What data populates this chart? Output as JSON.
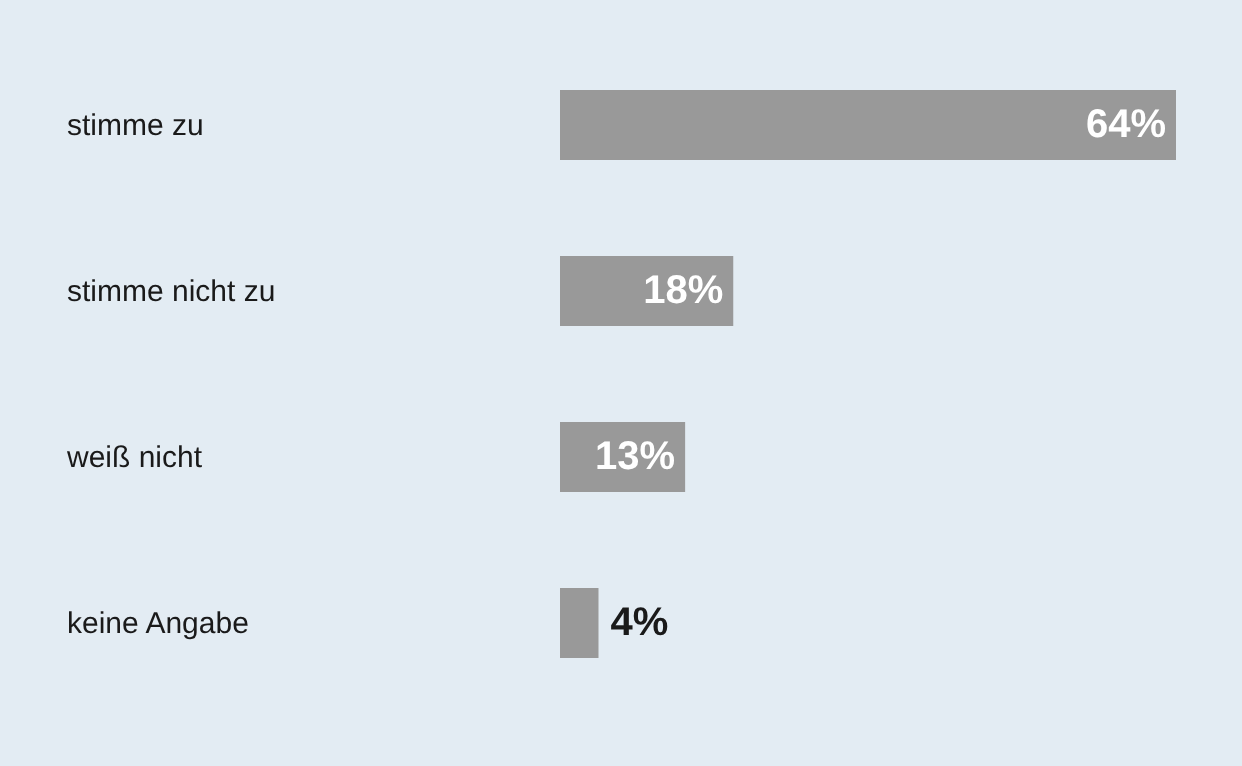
{
  "chart_data": {
    "type": "bar",
    "orientation": "horizontal",
    "categories": [
      "stimme zu",
      "stimme nicht zu",
      "weiß nicht",
      "keine Angabe"
    ],
    "values": [
      64,
      18,
      13,
      4
    ],
    "value_labels": [
      "64%",
      "18%",
      "13%",
      "4%"
    ],
    "color": "#999999"
  }
}
